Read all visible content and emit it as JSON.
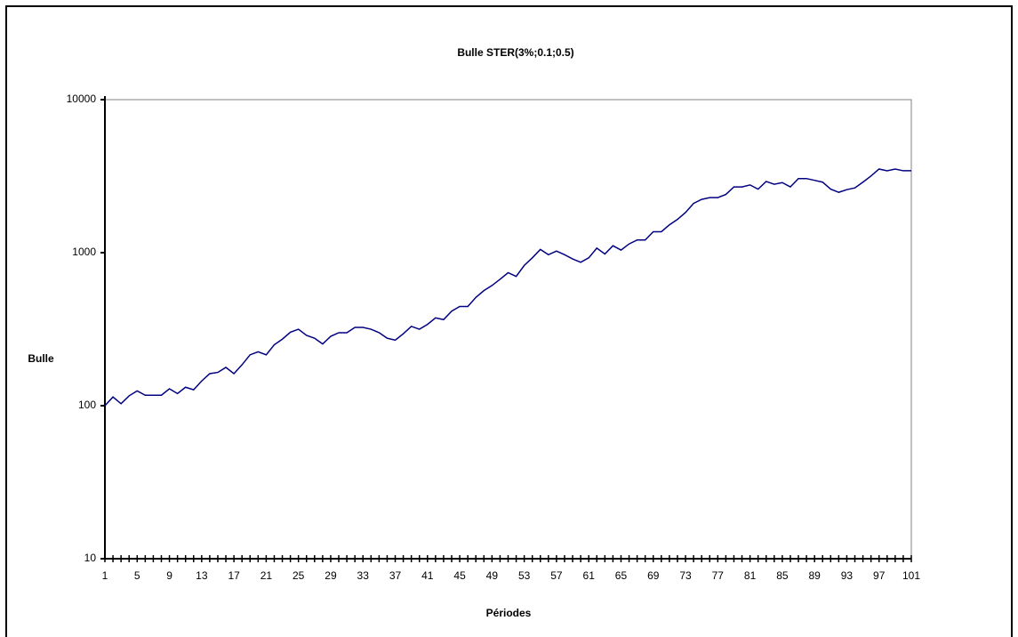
{
  "chart_data": {
    "type": "line",
    "title": "Bulle STER(3%;0.1;0.5)",
    "x_label": "Périodes",
    "y_label": "Bulle",
    "x": [
      1,
      2,
      3,
      4,
      5,
      6,
      7,
      8,
      9,
      10,
      11,
      12,
      13,
      14,
      15,
      16,
      17,
      18,
      19,
      20,
      21,
      22,
      23,
      24,
      25,
      26,
      27,
      28,
      29,
      30,
      31,
      32,
      33,
      34,
      35,
      36,
      37,
      38,
      39,
      40,
      41,
      42,
      43,
      44,
      45,
      46,
      47,
      48,
      49,
      50,
      51,
      52,
      53,
      54,
      55,
      56,
      57,
      58,
      59,
      60,
      61,
      62,
      63,
      64,
      65,
      66,
      67,
      68,
      69,
      70,
      71,
      72,
      73,
      74,
      75,
      76,
      77,
      78,
      79,
      80,
      81,
      82,
      83,
      84,
      85,
      86,
      87,
      88,
      89,
      90,
      91,
      92,
      93,
      94,
      95,
      96,
      97,
      98,
      99,
      100,
      101
    ],
    "series": [
      {
        "name": "Bulle",
        "color": "#000080",
        "values": [
          100,
          114,
          103,
          116,
          125,
          117,
          117,
          117,
          129,
          120,
          132,
          127,
          145,
          162,
          165,
          178,
          162,
          185,
          215,
          225,
          215,
          250,
          272,
          302,
          316,
          288,
          276,
          253,
          284,
          300,
          300,
          325,
          325,
          316,
          300,
          276,
          268,
          295,
          330,
          316,
          340,
          375,
          365,
          415,
          445,
          445,
          510,
          565,
          610,
          670,
          740,
          700,
          825,
          925,
          1050,
          970,
          1025,
          970,
          910,
          865,
          925,
          1070,
          980,
          1110,
          1040,
          1140,
          1210,
          1210,
          1370,
          1370,
          1520,
          1650,
          1830,
          2100,
          2230,
          2290,
          2290,
          2400,
          2690,
          2690,
          2770,
          2600,
          2920,
          2800,
          2870,
          2690,
          3050,
          3050,
          2970,
          2890,
          2600,
          2480,
          2580,
          2650,
          2890,
          3170,
          3520,
          3430,
          3520,
          3430,
          3430
        ]
      }
    ],
    "xlim": [
      1,
      101
    ],
    "xticks": [
      1,
      5,
      9,
      13,
      17,
      21,
      25,
      29,
      33,
      37,
      41,
      45,
      49,
      53,
      57,
      61,
      65,
      69,
      73,
      77,
      81,
      85,
      89,
      93,
      97,
      101
    ],
    "ylim": [
      10,
      10000
    ],
    "yticks": [
      10,
      100,
      1000,
      10000
    ],
    "log_y": true,
    "grid": false
  }
}
